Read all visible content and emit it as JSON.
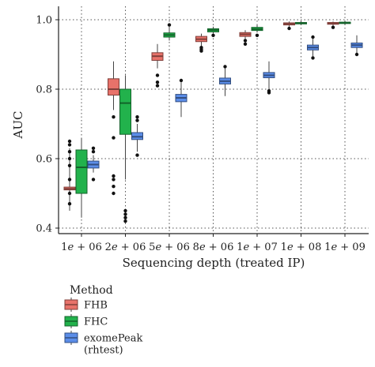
{
  "chart_data": {
    "type": "boxplot",
    "xlabel": "Sequencing depth (treated IP)",
    "ylabel": "AUC",
    "categories": [
      "1e + 06",
      "2e + 06",
      "5e + 06",
      "8e + 06",
      "1e + 07",
      "1e + 08",
      "1e + 09"
    ],
    "ylim": [
      0.4,
      1.0
    ],
    "yticks": [
      "0.4",
      "0.6",
      "0.8",
      "1.0"
    ],
    "grid": "dotted",
    "legend": {
      "title": "Method",
      "position": "bottom-left",
      "entries": [
        "FHB",
        "FHC",
        "exomePeak (rhtest)"
      ]
    },
    "series": [
      {
        "name": "FHB",
        "color": "#e8726a",
        "boxes": [
          {
            "min": 0.45,
            "q1": 0.51,
            "median": 0.513,
            "q3": 0.518,
            "max": 0.63,
            "outliers": [
              0.47,
              0.5,
              0.54,
              0.58,
              0.6,
              0.62,
              0.64,
              0.65
            ]
          },
          {
            "min": 0.74,
            "q1": 0.783,
            "median": 0.8,
            "q3": 0.83,
            "max": 0.88,
            "outliers": [
              0.5,
              0.52,
              0.54,
              0.55,
              0.72,
              0.66
            ]
          },
          {
            "min": 0.86,
            "q1": 0.883,
            "median": 0.895,
            "q3": 0.905,
            "max": 0.93,
            "outliers": [
              0.81,
              0.82,
              0.84
            ]
          },
          {
            "min": 0.925,
            "q1": 0.937,
            "median": 0.944,
            "q3": 0.952,
            "max": 0.96,
            "outliers": [
              0.91,
              0.915,
              0.92
            ]
          },
          {
            "min": 0.945,
            "q1": 0.952,
            "median": 0.958,
            "q3": 0.963,
            "max": 0.97,
            "outliers": [
              0.93,
              0.94
            ]
          },
          {
            "min": 0.98,
            "q1": 0.985,
            "median": 0.988,
            "q3": 0.991,
            "max": 0.995,
            "outliers": [
              0.975
            ]
          },
          {
            "min": 0.982,
            "q1": 0.987,
            "median": 0.99,
            "q3": 0.992,
            "max": 0.995,
            "outliers": [
              0.978
            ]
          }
        ]
      },
      {
        "name": "FHC",
        "color": "#22b24c",
        "boxes": [
          {
            "min": 0.43,
            "q1": 0.5,
            "median": 0.575,
            "q3": 0.625,
            "max": 0.66,
            "outliers": []
          },
          {
            "min": 0.54,
            "q1": 0.67,
            "median": 0.76,
            "q3": 0.8,
            "max": 0.84,
            "outliers": [
              0.42,
              0.43,
              0.44,
              0.45
            ]
          },
          {
            "min": 0.94,
            "q1": 0.95,
            "median": 0.956,
            "q3": 0.962,
            "max": 0.98,
            "outliers": [
              0.985
            ]
          },
          {
            "min": 0.96,
            "q1": 0.965,
            "median": 0.97,
            "q3": 0.974,
            "max": 0.98,
            "outliers": [
              0.955
            ]
          },
          {
            "min": 0.963,
            "q1": 0.969,
            "median": 0.973,
            "q3": 0.978,
            "max": 0.985,
            "outliers": [
              0.955
            ]
          },
          {
            "min": 0.985,
            "q1": 0.988,
            "median": 0.99,
            "q3": 0.992,
            "max": 0.997,
            "outliers": []
          },
          {
            "min": 0.986,
            "q1": 0.989,
            "median": 0.991,
            "q3": 0.993,
            "max": 0.997,
            "outliers": []
          }
        ]
      },
      {
        "name": "exomePeak (rhtest)",
        "color": "#5b8de8",
        "boxes": [
          {
            "min": 0.56,
            "q1": 0.573,
            "median": 0.583,
            "q3": 0.593,
            "max": 0.61,
            "outliers": [
              0.54,
              0.62,
              0.63
            ]
          },
          {
            "min": 0.62,
            "q1": 0.655,
            "median": 0.663,
            "q3": 0.675,
            "max": 0.7,
            "outliers": [
              0.61,
              0.71,
              0.72
            ]
          },
          {
            "min": 0.72,
            "q1": 0.764,
            "median": 0.775,
            "q3": 0.785,
            "max": 0.82,
            "outliers": [
              0.825
            ]
          },
          {
            "min": 0.78,
            "q1": 0.815,
            "median": 0.823,
            "q3": 0.832,
            "max": 0.86,
            "outliers": [
              0.865
            ]
          },
          {
            "min": 0.8,
            "q1": 0.833,
            "median": 0.84,
            "q3": 0.848,
            "max": 0.88,
            "outliers": [
              0.79,
              0.795
            ]
          },
          {
            "min": 0.895,
            "q1": 0.913,
            "median": 0.92,
            "q3": 0.927,
            "max": 0.945,
            "outliers": [
              0.89,
              0.95
            ]
          },
          {
            "min": 0.9,
            "q1": 0.92,
            "median": 0.927,
            "q3": 0.933,
            "max": 0.955,
            "outliers": [
              0.9
            ]
          }
        ]
      }
    ]
  }
}
